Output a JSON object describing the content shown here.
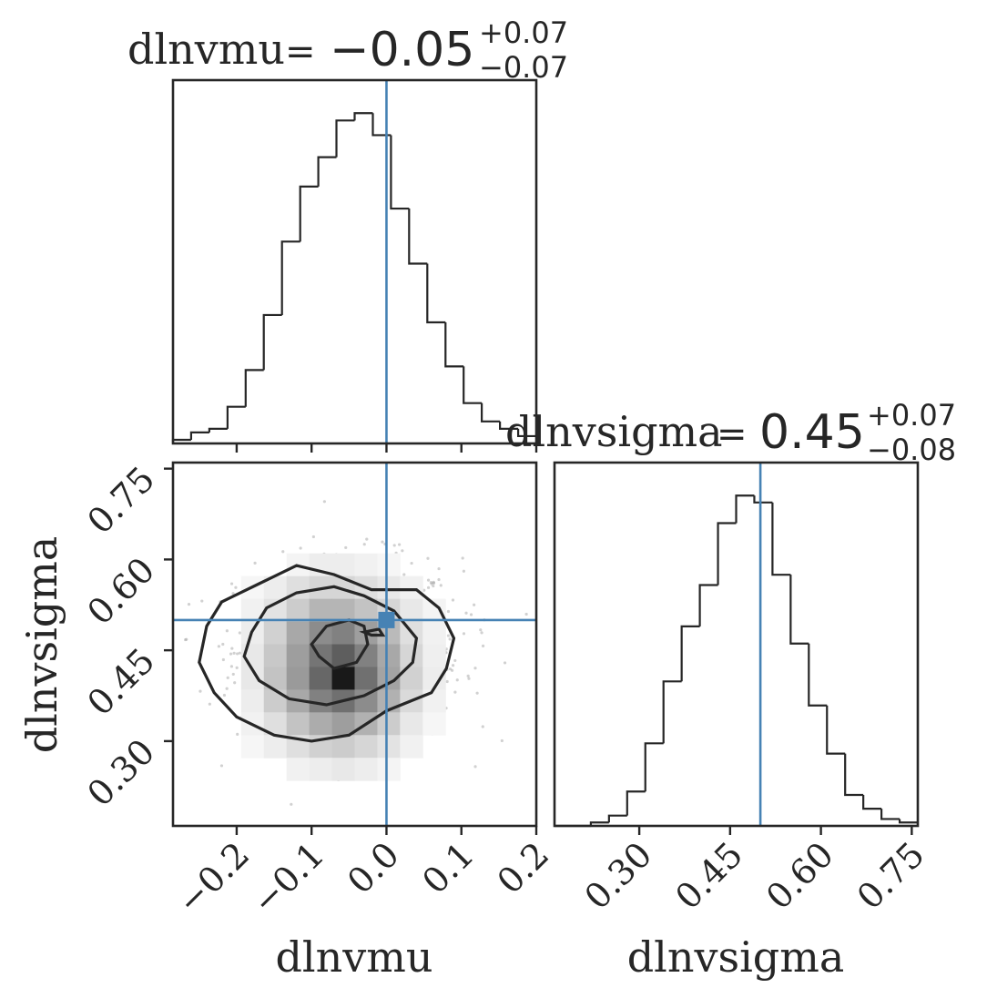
{
  "chart_data": {
    "type": "corner",
    "colors": {
      "ink": "#262626",
      "truth": "#4682b4"
    },
    "grid": false,
    "parameters": [
      "dlnvmu",
      "dlnvsigma"
    ],
    "truths": {
      "dlnvmu": 0.0,
      "dlnvsigma": 0.5
    },
    "titles": [
      {
        "param": "dlnvmu",
        "lhs": "dlnvmu",
        "median": "−0.05",
        "plus": "+0.07",
        "minus": "−0.07"
      },
      {
        "param": "dlnvsigma",
        "lhs": "dlnvsigma",
        "median": "0.45",
        "plus": "+0.07",
        "minus": "−0.08"
      }
    ],
    "hist_dlnvmu": {
      "xlim": [
        -0.285,
        0.2
      ],
      "bin_edges": [
        -0.285,
        -0.2608,
        -0.2365,
        -0.2122,
        -0.188,
        -0.1638,
        -0.1395,
        -0.1152,
        -0.091,
        -0.0668,
        -0.0425,
        -0.0182,
        0.006,
        0.0302,
        0.0545,
        0.0788,
        0.103,
        0.1272,
        0.1515,
        0.1758,
        0.2
      ],
      "counts": [
        1,
        3,
        4,
        10,
        20,
        35,
        55,
        70,
        78,
        88,
        90,
        84,
        64,
        49,
        33,
        21,
        11,
        6,
        4,
        2
      ]
    },
    "hist_dlnvsigma": {
      "xlim": [
        0.16,
        0.76
      ],
      "bin_edges": [
        0.16,
        0.19,
        0.22,
        0.25,
        0.28,
        0.31,
        0.34,
        0.37,
        0.4,
        0.43,
        0.46,
        0.49,
        0.52,
        0.55,
        0.58,
        0.61,
        0.64,
        0.67,
        0.7,
        0.73,
        0.76
      ],
      "counts": [
        0,
        0,
        1,
        3,
        10,
        24,
        42,
        58,
        70,
        88,
        96,
        94,
        73,
        53,
        35,
        21,
        9,
        5,
        2,
        1
      ]
    },
    "joint": {
      "xlim": [
        -0.285,
        0.2
      ],
      "ylim": [
        0.16,
        0.76
      ],
      "density_grid": [
        [
          0,
          0,
          0,
          0,
          0,
          0,
          0,
          0,
          0,
          0,
          0,
          0,
          0,
          0,
          0,
          0
        ],
        [
          0,
          0,
          0,
          0,
          0,
          0,
          0,
          0,
          0,
          0,
          0,
          0,
          0,
          0,
          0,
          0
        ],
        [
          0,
          0,
          0,
          0,
          0,
          0,
          0,
          0,
          0,
          0,
          0,
          0,
          0,
          0,
          0,
          0
        ],
        [
          0,
          0,
          0,
          0,
          0,
          0,
          0,
          0,
          0,
          0,
          0,
          0,
          0,
          0,
          0,
          0
        ],
        [
          0,
          0,
          0,
          0,
          0,
          0.05,
          0.08,
          0.08,
          0.06,
          0.04,
          0,
          0,
          0,
          0,
          0,
          0
        ],
        [
          0,
          0,
          0,
          0.04,
          0.08,
          0.14,
          0.18,
          0.18,
          0.14,
          0.1,
          0.06,
          0,
          0,
          0,
          0,
          0
        ],
        [
          0,
          0,
          0,
          0.06,
          0.12,
          0.22,
          0.32,
          0.32,
          0.26,
          0.18,
          0.1,
          0.05,
          0,
          0,
          0,
          0
        ],
        [
          0,
          0,
          0,
          0.08,
          0.2,
          0.38,
          0.5,
          0.55,
          0.42,
          0.3,
          0.14,
          0.06,
          0,
          0,
          0,
          0
        ],
        [
          0,
          0,
          0,
          0.1,
          0.24,
          0.42,
          0.6,
          0.7,
          0.55,
          0.38,
          0.18,
          0.07,
          0,
          0,
          0,
          0
        ],
        [
          0,
          0,
          0,
          0.1,
          0.26,
          0.44,
          0.66,
          1.0,
          0.62,
          0.4,
          0.2,
          0.08,
          0,
          0,
          0,
          0
        ],
        [
          0,
          0,
          0,
          0.08,
          0.22,
          0.38,
          0.55,
          0.62,
          0.5,
          0.34,
          0.16,
          0.06,
          0,
          0,
          0,
          0
        ],
        [
          0,
          0,
          0,
          0.06,
          0.14,
          0.26,
          0.36,
          0.42,
          0.34,
          0.22,
          0.1,
          0.04,
          0,
          0,
          0,
          0
        ],
        [
          0,
          0,
          0,
          0.04,
          0.08,
          0.14,
          0.2,
          0.22,
          0.18,
          0.12,
          0.06,
          0,
          0,
          0,
          0,
          0
        ],
        [
          0,
          0,
          0,
          0,
          0,
          0.06,
          0.08,
          0.1,
          0.08,
          0.05,
          0,
          0,
          0,
          0,
          0,
          0
        ],
        [
          0,
          0,
          0,
          0,
          0,
          0,
          0,
          0,
          0,
          0,
          0,
          0,
          0,
          0,
          0,
          0
        ],
        [
          0,
          0,
          0,
          0,
          0,
          0,
          0,
          0,
          0,
          0,
          0,
          0,
          0,
          0,
          0,
          0
        ]
      ],
      "contours": [
        [
          [
            -0.24,
            0.49
          ],
          [
            -0.22,
            0.53
          ],
          [
            -0.17,
            0.56
          ],
          [
            -0.12,
            0.59
          ],
          [
            -0.07,
            0.575
          ],
          [
            -0.02,
            0.55
          ],
          [
            0.04,
            0.55
          ],
          [
            0.07,
            0.52
          ],
          [
            0.09,
            0.47
          ],
          [
            0.08,
            0.42
          ],
          [
            0.06,
            0.38
          ],
          [
            0.0,
            0.35
          ],
          [
            -0.05,
            0.31
          ],
          [
            -0.1,
            0.3
          ],
          [
            -0.15,
            0.31
          ],
          [
            -0.2,
            0.34
          ],
          [
            -0.23,
            0.38
          ],
          [
            -0.25,
            0.43
          ]
        ],
        [
          [
            -0.18,
            0.48
          ],
          [
            -0.16,
            0.52
          ],
          [
            -0.12,
            0.545
          ],
          [
            -0.07,
            0.555
          ],
          [
            -0.03,
            0.54
          ],
          [
            0.01,
            0.515
          ],
          [
            0.04,
            0.47
          ],
          [
            0.035,
            0.43
          ],
          [
            0.01,
            0.4
          ],
          [
            -0.03,
            0.375
          ],
          [
            -0.08,
            0.36
          ],
          [
            -0.13,
            0.37
          ],
          [
            -0.17,
            0.4
          ],
          [
            -0.19,
            0.44
          ]
        ],
        [
          [
            -0.1,
            0.46
          ],
          [
            -0.08,
            0.49
          ],
          [
            -0.05,
            0.5
          ],
          [
            -0.03,
            0.49
          ],
          [
            -0.025,
            0.46
          ],
          [
            -0.04,
            0.43
          ],
          [
            -0.07,
            0.42
          ],
          [
            -0.09,
            0.44
          ]
        ],
        [
          [
            -0.03,
            0.48
          ],
          [
            -0.01,
            0.485
          ],
          [
            -0.005,
            0.475
          ],
          [
            -0.02,
            0.475
          ]
        ]
      ]
    },
    "axes": {
      "dlnvmu": {
        "label": "dlnvmu",
        "ticks": [
          -0.2,
          -0.1,
          0.0,
          0.1,
          0.2
        ],
        "tick_labels": [
          "−0.2",
          "−0.1",
          "0.0",
          "0.1",
          "0.2"
        ]
      },
      "dlnvsigma": {
        "label": "dlnvsigma",
        "ticks": [
          0.3,
          0.45,
          0.6,
          0.75
        ],
        "tick_labels": [
          "0.30",
          "0.45",
          "0.60",
          "0.75"
        ]
      }
    }
  }
}
